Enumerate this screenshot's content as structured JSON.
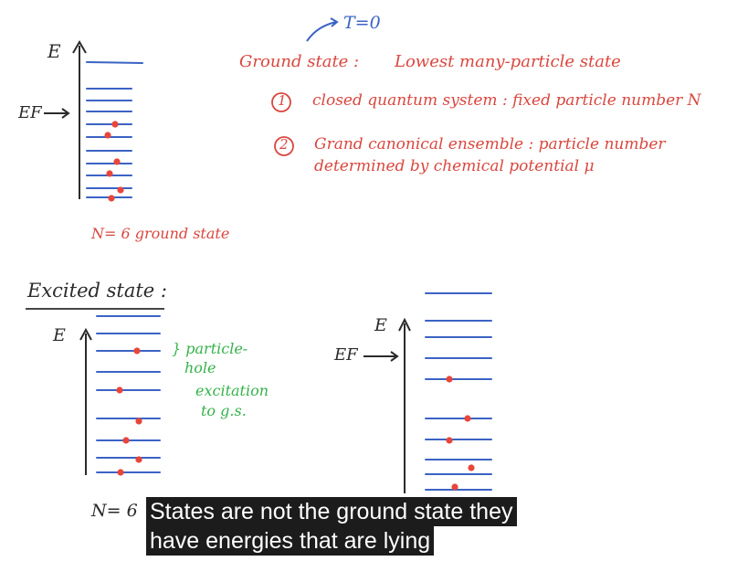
{
  "colors": {
    "ink_blue": "#3b63c4",
    "ink_dark": "#2b2b2b",
    "ink_red": "#d9473f",
    "ink_green": "#35b24a",
    "electron": "#e8463a",
    "caption_bg": "#1c1c1c"
  },
  "notes": {
    "temperature": "T=0",
    "ground_state_label": "Ground state :",
    "ground_state_def": "Lowest many-particle state",
    "item1_num": "1",
    "item1_text": "closed quantum system : fixed particle number N",
    "item2_num": "2",
    "item2_line1": "Grand canonical ensemble : particle number",
    "item2_line2": "determined by chemical potential μ",
    "excited_heading": "Excited state :",
    "bracket_note": "} particle-",
    "bracket_note2": "hole",
    "bracket_note3": "excitation",
    "bracket_note4": "to g.s."
  },
  "diagrams": {
    "ground": {
      "energy_label": "E",
      "fermi_label": "EF",
      "caption": "N= 6   ground state",
      "particle_count": 6
    },
    "excited_left": {
      "energy_label": "E",
      "caption": "N= 6",
      "particle_count": 6
    },
    "excited_right": {
      "energy_label": "E",
      "fermi_label": "EF",
      "particle_count": 6
    }
  },
  "subtitle": {
    "line1": "States are not the ground state they",
    "line2": "have energies that are lying"
  }
}
